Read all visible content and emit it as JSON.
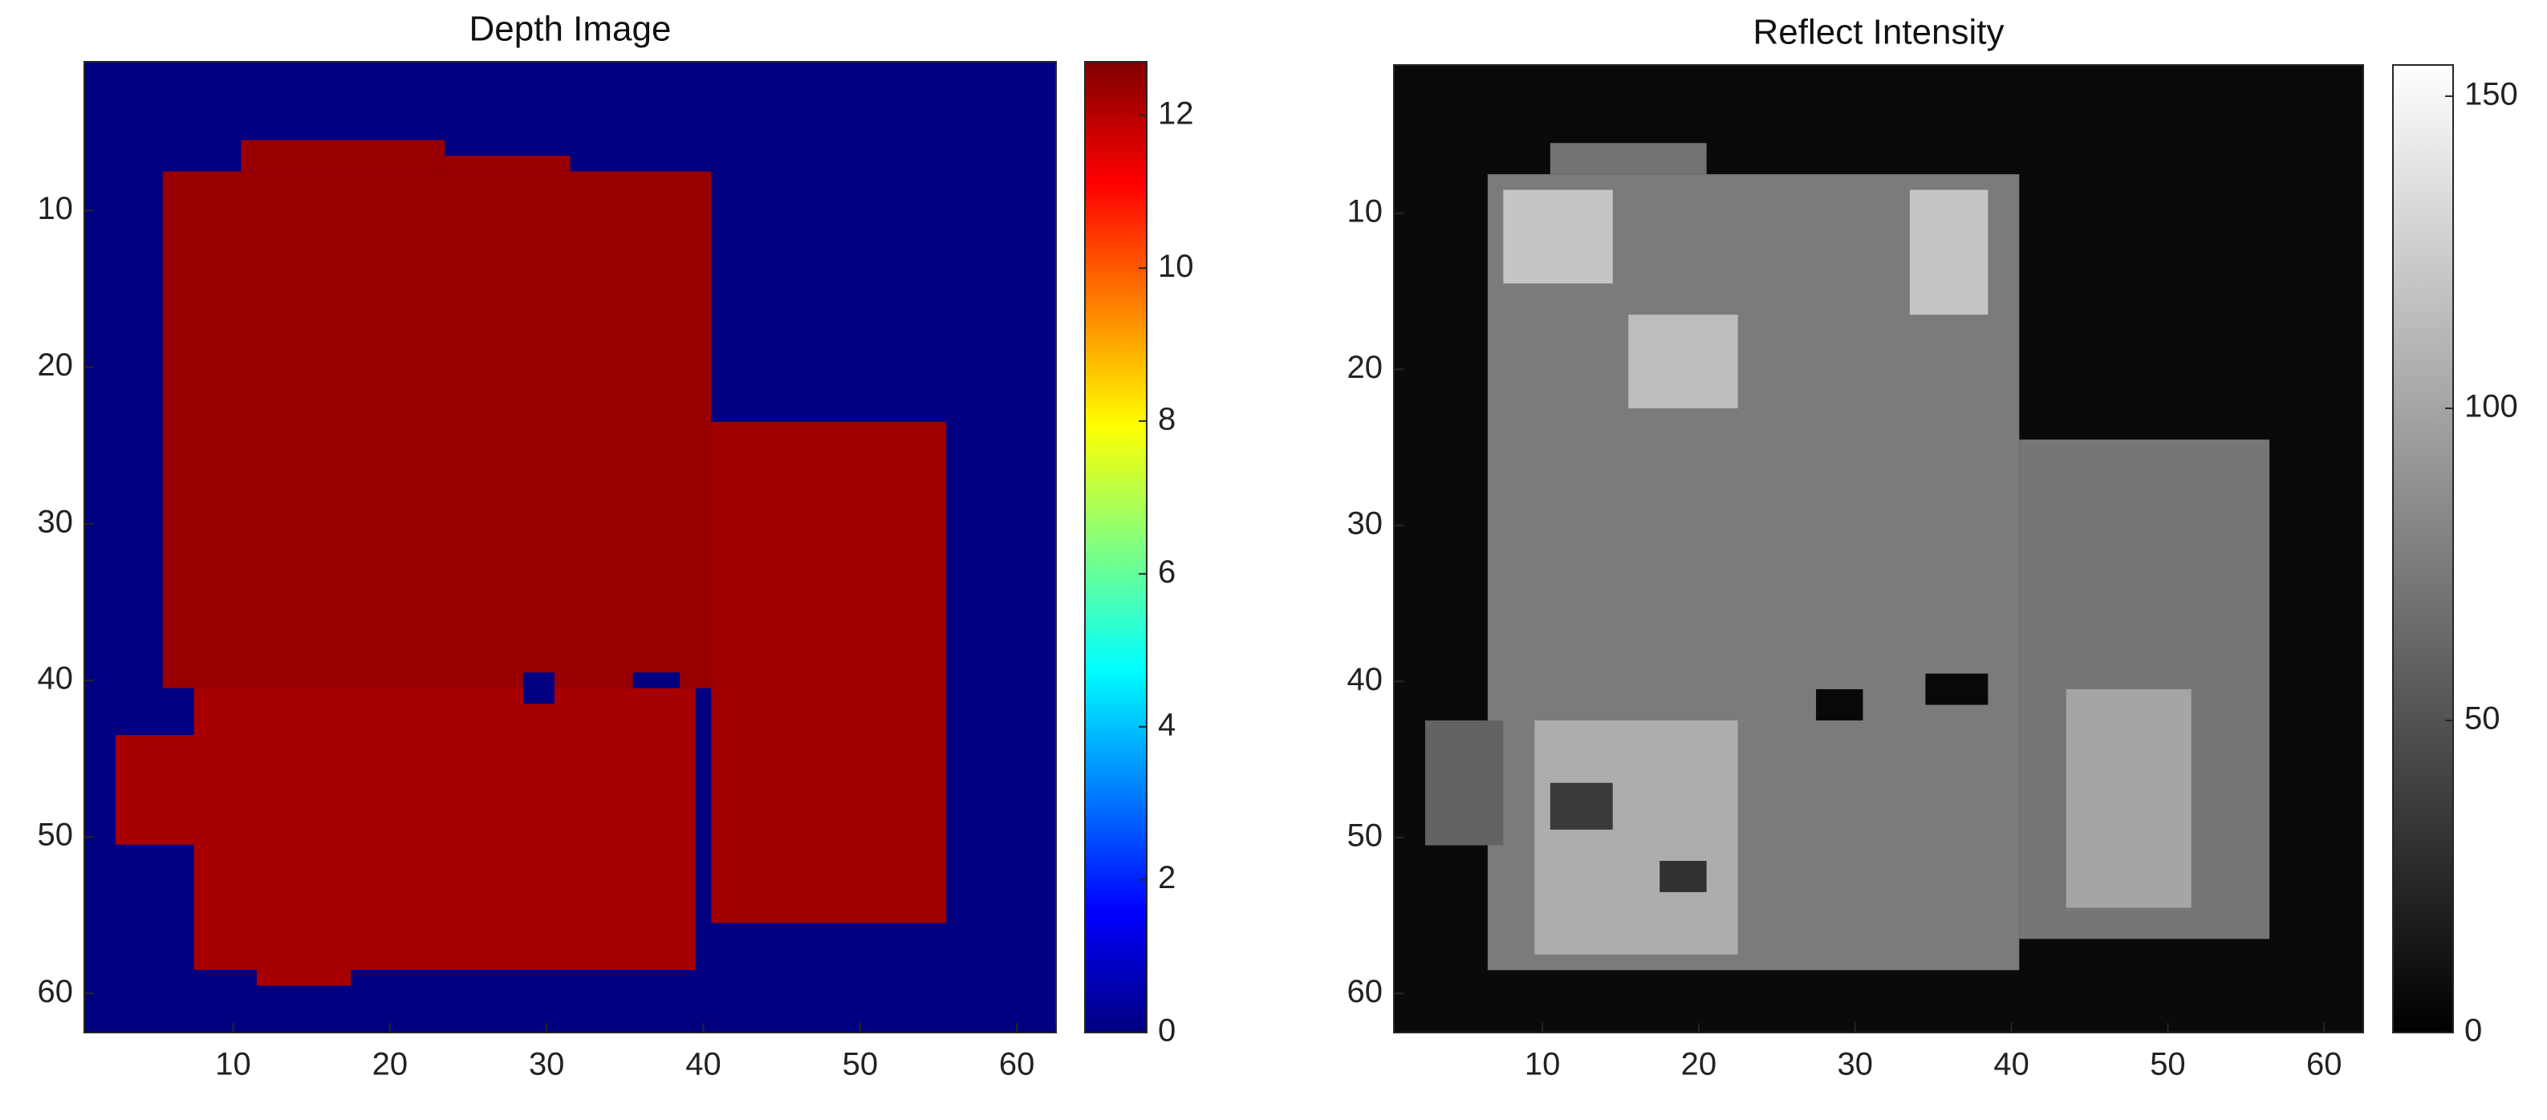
{
  "chart_data": [
    {
      "type": "heatmap",
      "title": "Depth Image",
      "colormap": "jet",
      "xlim": [
        0.5,
        62.5
      ],
      "ylim": [
        0.5,
        62.5
      ],
      "xticks": [
        10,
        20,
        30,
        40,
        50,
        60
      ],
      "yticks": [
        10,
        20,
        30,
        40,
        50,
        60
      ],
      "clim": [
        0,
        12.7
      ],
      "cticks": [
        0,
        2,
        4,
        6,
        8,
        10,
        12
      ],
      "regions": [
        {
          "x": [
            1,
            62
          ],
          "y": [
            1,
            62
          ],
          "value": 0
        },
        {
          "x": [
            6,
            40
          ],
          "y": [
            8,
            40
          ],
          "value": 12.4
        },
        {
          "x": [
            11,
            23
          ],
          "y": [
            6,
            7
          ],
          "value": 12.4
        },
        {
          "x": [
            24,
            31
          ],
          "y": [
            7,
            7
          ],
          "value": 12.4
        },
        {
          "x": [
            8,
            39
          ],
          "y": [
            41,
            58
          ],
          "value": 12.2
        },
        {
          "x": [
            12,
            17
          ],
          "y": [
            59,
            59
          ],
          "value": 12.2
        },
        {
          "x": [
            41,
            55
          ],
          "y": [
            24,
            55
          ],
          "value": 12.3
        },
        {
          "x": [
            3,
            7
          ],
          "y": [
            44,
            50
          ],
          "value": 12.2
        },
        {
          "x": [
            29,
            30
          ],
          "y": [
            40,
            41
          ],
          "value": 0
        },
        {
          "x": [
            36,
            38
          ],
          "y": [
            40,
            40
          ],
          "value": 0
        }
      ]
    },
    {
      "type": "heatmap",
      "title": "Reflect Intensity",
      "colormap": "gray",
      "xlim": [
        0.5,
        62.5
      ],
      "ylim": [
        0.5,
        62.5
      ],
      "xticks": [
        10,
        20,
        30,
        40,
        50,
        60
      ],
      "yticks": [
        10,
        20,
        30,
        40,
        50,
        60
      ],
      "clim": [
        0,
        155
      ],
      "cticks": [
        0,
        50,
        100,
        150
      ],
      "regions": [
        {
          "x": [
            1,
            62
          ],
          "y": [
            1,
            62
          ],
          "value": 6
        },
        {
          "x": [
            7,
            40
          ],
          "y": [
            8,
            58
          ],
          "value": 75
        },
        {
          "x": [
            11,
            20
          ],
          "y": [
            6,
            7
          ],
          "value": 70
        },
        {
          "x": [
            41,
            56
          ],
          "y": [
            25,
            56
          ],
          "value": 72
        },
        {
          "x": [
            3,
            7
          ],
          "y": [
            43,
            50
          ],
          "value": 60
        },
        {
          "x": [
            8,
            14
          ],
          "y": [
            9,
            14
          ],
          "value": 120
        },
        {
          "x": [
            16,
            22
          ],
          "y": [
            17,
            22
          ],
          "value": 115
        },
        {
          "x": [
            34,
            38
          ],
          "y": [
            9,
            16
          ],
          "value": 120
        },
        {
          "x": [
            10,
            22
          ],
          "y": [
            43,
            57
          ],
          "value": 105
        },
        {
          "x": [
            11,
            14
          ],
          "y": [
            47,
            49
          ],
          "value": 35
        },
        {
          "x": [
            18,
            20
          ],
          "y": [
            52,
            53
          ],
          "value": 30
        },
        {
          "x": [
            44,
            51
          ],
          "y": [
            41,
            54
          ],
          "value": 100
        },
        {
          "x": [
            28,
            30
          ],
          "y": [
            41,
            42
          ],
          "value": 5
        },
        {
          "x": [
            35,
            38
          ],
          "y": [
            40,
            41
          ],
          "value": 5
        }
      ]
    }
  ]
}
